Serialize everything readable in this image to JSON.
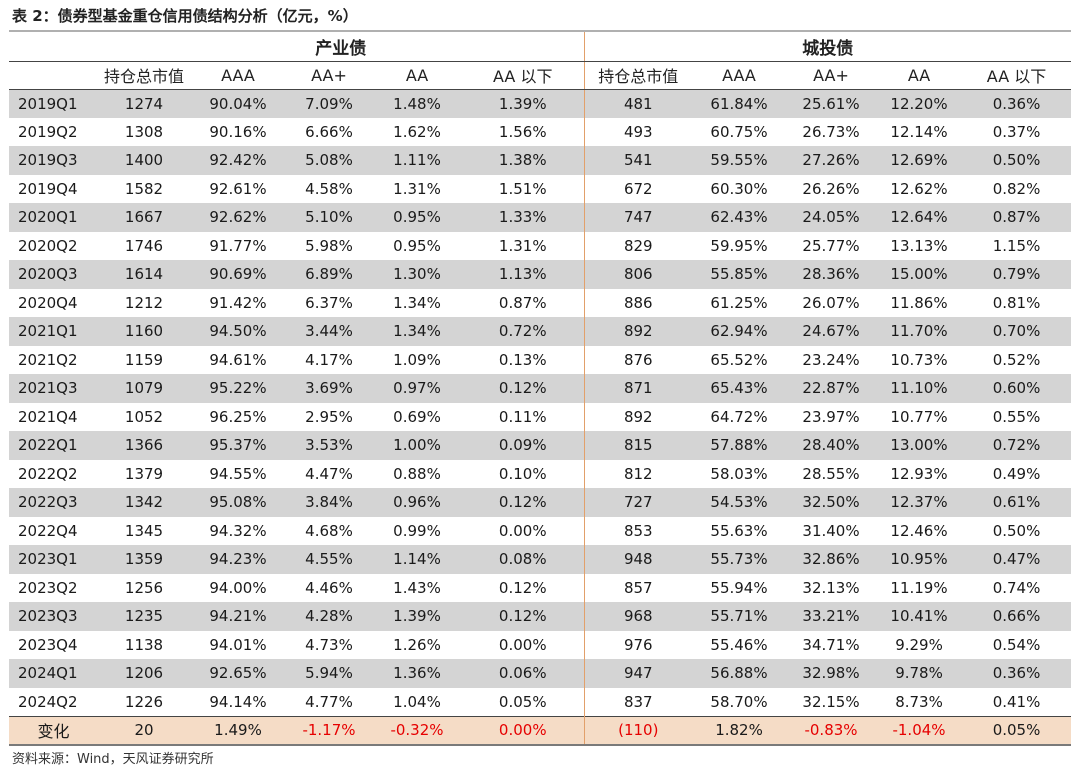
{
  "title": "表 2：债券型基金重仓信用债结构分析（亿元，%）",
  "groups": {
    "industry": "产业债",
    "urban": "城投债"
  },
  "columns": [
    "",
    "持仓总市值",
    "AAA",
    "AA+",
    "AA",
    "AA 以下",
    "持仓总市值",
    "AAA",
    "AA+",
    "AA",
    "AA 以下"
  ],
  "rows": [
    [
      "2019Q1",
      "1274",
      "90.04%",
      "7.09%",
      "1.48%",
      "1.39%",
      "481",
      "61.84%",
      "25.61%",
      "12.20%",
      "0.36%"
    ],
    [
      "2019Q2",
      "1308",
      "90.16%",
      "6.66%",
      "1.62%",
      "1.56%",
      "493",
      "60.75%",
      "26.73%",
      "12.14%",
      "0.37%"
    ],
    [
      "2019Q3",
      "1400",
      "92.42%",
      "5.08%",
      "1.11%",
      "1.38%",
      "541",
      "59.55%",
      "27.26%",
      "12.69%",
      "0.50%"
    ],
    [
      "2019Q4",
      "1582",
      "92.61%",
      "4.58%",
      "1.31%",
      "1.51%",
      "672",
      "60.30%",
      "26.26%",
      "12.62%",
      "0.82%"
    ],
    [
      "2020Q1",
      "1667",
      "92.62%",
      "5.10%",
      "0.95%",
      "1.33%",
      "747",
      "62.43%",
      "24.05%",
      "12.64%",
      "0.87%"
    ],
    [
      "2020Q2",
      "1746",
      "91.77%",
      "5.98%",
      "0.95%",
      "1.31%",
      "829",
      "59.95%",
      "25.77%",
      "13.13%",
      "1.15%"
    ],
    [
      "2020Q3",
      "1614",
      "90.69%",
      "6.89%",
      "1.30%",
      "1.13%",
      "806",
      "55.85%",
      "28.36%",
      "15.00%",
      "0.79%"
    ],
    [
      "2020Q4",
      "1212",
      "91.42%",
      "6.37%",
      "1.34%",
      "0.87%",
      "886",
      "61.25%",
      "26.07%",
      "11.86%",
      "0.81%"
    ],
    [
      "2021Q1",
      "1160",
      "94.50%",
      "3.44%",
      "1.34%",
      "0.72%",
      "892",
      "62.94%",
      "24.67%",
      "11.70%",
      "0.70%"
    ],
    [
      "2021Q2",
      "1159",
      "94.61%",
      "4.17%",
      "1.09%",
      "0.13%",
      "876",
      "65.52%",
      "23.24%",
      "10.73%",
      "0.52%"
    ],
    [
      "2021Q3",
      "1079",
      "95.22%",
      "3.69%",
      "0.97%",
      "0.12%",
      "871",
      "65.43%",
      "22.87%",
      "11.10%",
      "0.60%"
    ],
    [
      "2021Q4",
      "1052",
      "96.25%",
      "2.95%",
      "0.69%",
      "0.11%",
      "892",
      "64.72%",
      "23.97%",
      "10.77%",
      "0.55%"
    ],
    [
      "2022Q1",
      "1366",
      "95.37%",
      "3.53%",
      "1.00%",
      "0.09%",
      "815",
      "57.88%",
      "28.40%",
      "13.00%",
      "0.72%"
    ],
    [
      "2022Q2",
      "1379",
      "94.55%",
      "4.47%",
      "0.88%",
      "0.10%",
      "812",
      "58.03%",
      "28.55%",
      "12.93%",
      "0.49%"
    ],
    [
      "2022Q3",
      "1342",
      "95.08%",
      "3.84%",
      "0.96%",
      "0.12%",
      "727",
      "54.53%",
      "32.50%",
      "12.37%",
      "0.61%"
    ],
    [
      "2022Q4",
      "1345",
      "94.32%",
      "4.68%",
      "0.99%",
      "0.00%",
      "853",
      "55.63%",
      "31.40%",
      "12.46%",
      "0.50%"
    ],
    [
      "2023Q1",
      "1359",
      "94.23%",
      "4.55%",
      "1.14%",
      "0.08%",
      "948",
      "55.73%",
      "32.86%",
      "10.95%",
      "0.47%"
    ],
    [
      "2023Q2",
      "1256",
      "94.00%",
      "4.46%",
      "1.43%",
      "0.12%",
      "857",
      "55.94%",
      "32.13%",
      "11.19%",
      "0.74%"
    ],
    [
      "2023Q3",
      "1235",
      "94.21%",
      "4.28%",
      "1.39%",
      "0.12%",
      "968",
      "55.71%",
      "33.21%",
      "10.41%",
      "0.66%"
    ],
    [
      "2023Q4",
      "1138",
      "94.01%",
      "4.73%",
      "1.26%",
      "0.00%",
      "976",
      "55.46%",
      "34.71%",
      "9.29%",
      "0.54%"
    ],
    [
      "2024Q1",
      "1206",
      "92.65%",
      "5.94%",
      "1.36%",
      "0.06%",
      "947",
      "56.88%",
      "32.98%",
      "9.78%",
      "0.36%"
    ],
    [
      "2024Q2",
      "1226",
      "94.14%",
      "4.77%",
      "1.04%",
      "0.05%",
      "837",
      "58.70%",
      "32.15%",
      "8.73%",
      "0.41%"
    ]
  ],
  "change_row": [
    "变化",
    "20",
    "1.49%",
    "-1.17%",
    "-0.32%",
    "0.00%",
    "(110)",
    "1.82%",
    "-0.83%",
    "-1.04%",
    "0.05%"
  ],
  "change_red_columns": [
    3,
    4,
    5,
    6,
    8,
    9
  ],
  "colors": {
    "shade": "#d4d4d4",
    "change_bg": "#f5dcc6",
    "negative": "#e60000",
    "separator": "#e2a06a"
  },
  "source": "资料来源：Wind，天风证券研究所"
}
